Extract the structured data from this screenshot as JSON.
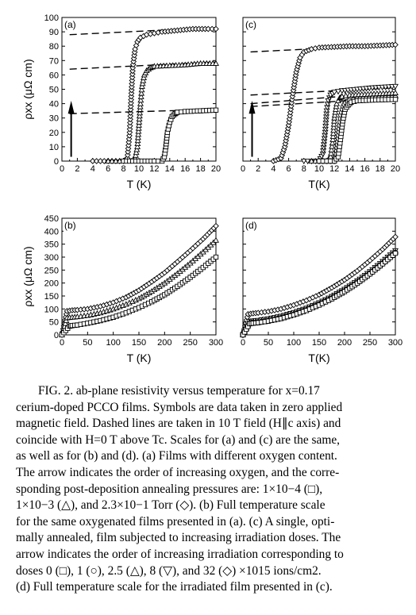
{
  "chart_data": [
    {
      "type": "scatter",
      "panel": "(a)",
      "xlabel": "T (K)",
      "ylabel": "ρxx (μΩ cm)",
      "xlim": [
        0,
        20
      ],
      "ylim": [
        0,
        100
      ],
      "xticks": [
        0,
        2,
        4,
        6,
        8,
        10,
        12,
        14,
        16,
        18,
        20
      ],
      "yticks": [
        0,
        10,
        20,
        30,
        40,
        50,
        60,
        70,
        80,
        90,
        100
      ],
      "annotations": [
        "arrow: order of increasing oxygen"
      ],
      "series": [
        {
          "marker": "diamond",
          "x": [
            4,
            5,
            6,
            7,
            8,
            8.5,
            8.8,
            9.0,
            9.2,
            9.5,
            9.8,
            10.2,
            11,
            12,
            13,
            15,
            17,
            19,
            20
          ],
          "y": [
            0,
            0,
            0,
            0,
            0,
            2,
            20,
            45,
            65,
            78,
            83,
            86,
            88,
            89,
            90,
            91,
            92,
            92,
            92
          ],
          "normal_state_10T": [
            [
              1,
              88
            ],
            [
              20,
              93
            ]
          ]
        },
        {
          "marker": "triangle",
          "x": [
            6,
            7,
            8,
            9,
            9.5,
            9.8,
            10,
            10.2,
            10.4,
            10.7,
            11,
            11.5,
            12,
            14,
            16,
            18,
            20
          ],
          "y": [
            0,
            0,
            0,
            0,
            2,
            10,
            25,
            40,
            52,
            60,
            63,
            65,
            66,
            66.5,
            67,
            68,
            68
          ],
          "normal_state_10T": [
            [
              1,
              64
            ],
            [
              20,
              69
            ]
          ]
        },
        {
          "marker": "square",
          "x": [
            8,
            10,
            12,
            13,
            13.3,
            13.5,
            13.7,
            14,
            14.3,
            14.7,
            15,
            16,
            18,
            20
          ],
          "y": [
            0,
            0,
            0,
            0,
            3,
            10,
            20,
            27,
            31,
            33,
            34,
            34.5,
            35,
            35.5
          ],
          "normal_state_10T": [
            [
              1,
              33
            ],
            [
              20,
              36
            ]
          ]
        }
      ]
    },
    {
      "type": "scatter",
      "panel": "(c)",
      "xlabel": "T(K)",
      "ylabel": "",
      "xlim": [
        0,
        20
      ],
      "ylim": [
        0,
        100
      ],
      "xticks": [
        0,
        2,
        4,
        6,
        8,
        10,
        12,
        14,
        16,
        18,
        20
      ],
      "annotations": [
        "arrow: order of increasing irradiation"
      ],
      "series": [
        {
          "marker": "diamond",
          "x": [
            4,
            5,
            5.5,
            6,
            6.5,
            7,
            7.5,
            8,
            9,
            10,
            12,
            14,
            16,
            18,
            20
          ],
          "y": [
            0,
            2,
            10,
            25,
            45,
            62,
            72,
            76,
            78,
            79,
            79.5,
            80,
            80,
            80.5,
            81
          ],
          "normal_state_10T": [
            [
              1,
              76
            ],
            [
              20,
              81
            ]
          ]
        },
        {
          "marker": "triangle-down",
          "x": [
            8,
            9,
            10,
            10.5,
            10.8,
            11,
            11.2,
            11.5,
            12,
            13,
            15,
            17,
            20
          ],
          "y": [
            0,
            0,
            0,
            5,
            20,
            35,
            42,
            46,
            48,
            49,
            50,
            51,
            52
          ],
          "normal_state_10T": [
            [
              1,
              46
            ],
            [
              20,
              51
            ]
          ]
        },
        {
          "marker": "triangle",
          "x": [
            9,
            10,
            11,
            11.5,
            11.8,
            12,
            12.3,
            12.7,
            13,
            14,
            16,
            18,
            20
          ],
          "y": [
            0,
            0,
            0,
            3,
            15,
            30,
            40,
            44,
            45,
            46,
            46.5,
            47,
            47.5
          ],
          "normal_state_10T": [
            [
              1,
              40
            ],
            [
              20,
              48
            ]
          ]
        },
        {
          "marker": "circle",
          "x": [
            10,
            11,
            12,
            12.3,
            12.6,
            12.9,
            13.2,
            13.5,
            14,
            15,
            17,
            20
          ],
          "y": [
            0,
            0,
            0,
            5,
            18,
            32,
            38,
            41,
            42,
            43,
            43.5,
            44
          ]
        },
        {
          "marker": "square",
          "x": [
            10,
            11,
            12,
            12.5,
            12.8,
            13.1,
            13.4,
            13.8,
            14.2,
            15,
            17,
            20
          ],
          "y": [
            0,
            0,
            0,
            3,
            15,
            28,
            36,
            39,
            41,
            42,
            42.5,
            43
          ],
          "normal_state_10T": [
            [
              1,
              38
            ],
            [
              20,
              44
            ]
          ]
        }
      ]
    },
    {
      "type": "scatter",
      "panel": "(b)",
      "xlabel": "T (K)",
      "ylabel": "ρxx (μΩ cm)",
      "xlim": [
        0,
        300
      ],
      "ylim": [
        0,
        450
      ],
      "xticks": [
        0,
        50,
        100,
        150,
        200,
        250,
        300
      ],
      "yticks": [
        0,
        50,
        100,
        150,
        200,
        250,
        300,
        350,
        400,
        450
      ],
      "series": [
        {
          "marker": "diamond",
          "x": [
            0,
            10,
            20,
            30,
            50,
            75,
            100,
            125,
            150,
            175,
            200,
            225,
            250,
            275,
            300
          ],
          "y": [
            0,
            92,
            95,
            96,
            100,
            110,
            125,
            145,
            172,
            205,
            240,
            282,
            325,
            370,
            420
          ]
        },
        {
          "marker": "triangle",
          "x": [
            0,
            10,
            20,
            30,
            50,
            75,
            100,
            125,
            150,
            175,
            200,
            225,
            250,
            275,
            300
          ],
          "y": [
            0,
            66,
            68,
            70,
            75,
            85,
            100,
            118,
            140,
            168,
            200,
            237,
            277,
            320,
            365
          ]
        },
        {
          "marker": "square",
          "x": [
            0,
            15,
            20,
            30,
            50,
            75,
            100,
            125,
            150,
            175,
            200,
            225,
            250,
            275,
            300
          ],
          "y": [
            0,
            34,
            36,
            38,
            45,
            55,
            68,
            85,
            105,
            128,
            155,
            187,
            222,
            260,
            300
          ]
        }
      ]
    },
    {
      "type": "scatter",
      "panel": "(d)",
      "xlabel": "T(K)",
      "ylabel": "",
      "xlim": [
        0,
        300
      ],
      "ylim": [
        0,
        450
      ],
      "xticks": [
        0,
        50,
        100,
        150,
        200,
        250,
        300
      ],
      "series": [
        {
          "marker": "diamond",
          "x": [
            0,
            10,
            20,
            30,
            50,
            75,
            100,
            125,
            150,
            175,
            200,
            225,
            250,
            275,
            300
          ],
          "y": [
            0,
            80,
            83,
            85,
            90,
            100,
            115,
            133,
            155,
            182,
            212,
            247,
            287,
            330,
            378
          ]
        },
        {
          "marker": "triangle-down",
          "x": [
            0,
            12,
            20,
            30,
            50,
            75,
            100,
            125,
            150,
            175,
            200,
            225,
            250,
            275,
            300
          ],
          "y": [
            0,
            52,
            54,
            56,
            62,
            72,
            86,
            103,
            124,
            148,
            176,
            208,
            244,
            283,
            325
          ]
        },
        {
          "marker": "triangle",
          "x": [
            0,
            13,
            20,
            30,
            50,
            75,
            100,
            125,
            150,
            175,
            200,
            225,
            250,
            275,
            300
          ],
          "y": [
            0,
            48,
            50,
            52,
            58,
            68,
            82,
            99,
            120,
            144,
            172,
            204,
            240,
            279,
            320
          ]
        },
        {
          "marker": "circle",
          "x": [
            0,
            13,
            20,
            30,
            50,
            75,
            100,
            125,
            150,
            175,
            200,
            225,
            250,
            275,
            300
          ],
          "y": [
            0,
            44,
            46,
            48,
            54,
            64,
            78,
            95,
            116,
            140,
            168,
            200,
            236,
            275,
            316
          ]
        },
        {
          "marker": "square",
          "x": [
            0,
            13,
            20,
            30,
            50,
            75,
            100,
            125,
            150,
            175,
            200,
            225,
            250,
            275,
            300
          ],
          "y": [
            0,
            43,
            45,
            47,
            53,
            63,
            77,
            94,
            115,
            139,
            167,
            199,
            235,
            274,
            315
          ]
        }
      ]
    }
  ],
  "caption": {
    "lines": [
      "FIG. 2. ab-plane resistivity versus temperature for x=0.17",
      "cerium-doped PCCO films. Symbols are data taken in zero applied",
      "magnetic field. Dashed lines are taken in 10 T field (H∥c axis) and",
      "coincide with H=0 T above Tc. Scales for (a) and (c) are the same,",
      "as well as for (b) and (d). (a) Films with different oxygen content.",
      "The arrow indicates the order of increasing oxygen, and the corre-",
      "sponding post-deposition annealing pressures are: 1×10−4 (□),",
      "1×10−3 (△), and 2.3×10−1 Torr (◇). (b) Full temperature scale",
      "for the same oxygenated films presented in (a). (c) A single, opti-",
      "mally annealed, film subjected to increasing irradiation doses. The",
      "arrow indicates the order of increasing irradiation corresponding to",
      "doses 0 (□), 1 (○), 2.5 (△), 8 (▽), and 32 (◇) ×1015 ions/cm2.",
      "(d) Full temperature scale for the irradiated film presented in (c)."
    ]
  }
}
